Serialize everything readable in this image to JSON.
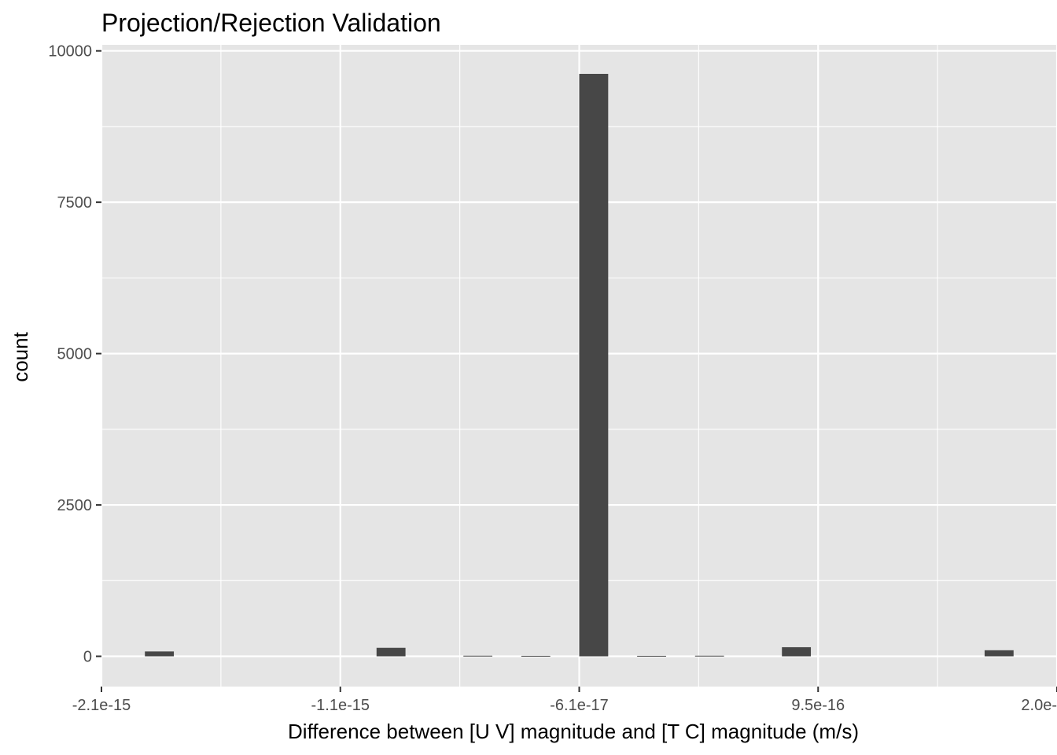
{
  "chart_data": {
    "type": "bar",
    "title": "Projection/Rejection Validation",
    "xlabel": "Difference between [U V] magnitude and [T C] magnitude (m/s)",
    "ylabel": "count",
    "x_tick_labels": [
      "-2.1e-15",
      "-1.1e-15",
      "-6.1e-17",
      "9.5e-16",
      "2.0e-"
    ],
    "y_ticks": [
      0,
      2500,
      5000,
      7500,
      10000
    ],
    "y_tick_labels": [
      "0",
      "2500",
      "5000",
      "7500",
      "10000"
    ],
    "ylim": [
      -500,
      10100
    ],
    "grid": true,
    "bins": [
      {
        "bin": 1,
        "count": 80
      },
      {
        "bin": 2,
        "count": 0
      },
      {
        "bin": 3,
        "count": 0
      },
      {
        "bin": 4,
        "count": 0
      },
      {
        "bin": 5,
        "count": 0
      },
      {
        "bin": 6,
        "count": 0
      },
      {
        "bin": 7,
        "count": 0
      },
      {
        "bin": 8,
        "count": 0
      },
      {
        "bin": 9,
        "count": 140
      },
      {
        "bin": 10,
        "count": 0
      },
      {
        "bin": 11,
        "count": 0
      },
      {
        "bin": 12,
        "count": 10
      },
      {
        "bin": 13,
        "count": 0
      },
      {
        "bin": 14,
        "count": 8
      },
      {
        "bin": 15,
        "count": 0
      },
      {
        "bin": 16,
        "count": 9620
      },
      {
        "bin": 17,
        "count": 0
      },
      {
        "bin": 18,
        "count": 8
      },
      {
        "bin": 19,
        "count": 0
      },
      {
        "bin": 20,
        "count": 10
      },
      {
        "bin": 21,
        "count": 0
      },
      {
        "bin": 22,
        "count": 0
      },
      {
        "bin": 23,
        "count": 150
      },
      {
        "bin": 24,
        "count": 0
      },
      {
        "bin": 25,
        "count": 0
      },
      {
        "bin": 26,
        "count": 0
      },
      {
        "bin": 27,
        "count": 0
      },
      {
        "bin": 28,
        "count": 0
      },
      {
        "bin": 29,
        "count": 0
      },
      {
        "bin": 30,
        "count": 100
      }
    ],
    "colors": {
      "panel": "#e5e5e5",
      "grid": "#ffffff",
      "bar": "#474747",
      "tick": "#333333",
      "tick_label": "#4d4d4d"
    }
  }
}
